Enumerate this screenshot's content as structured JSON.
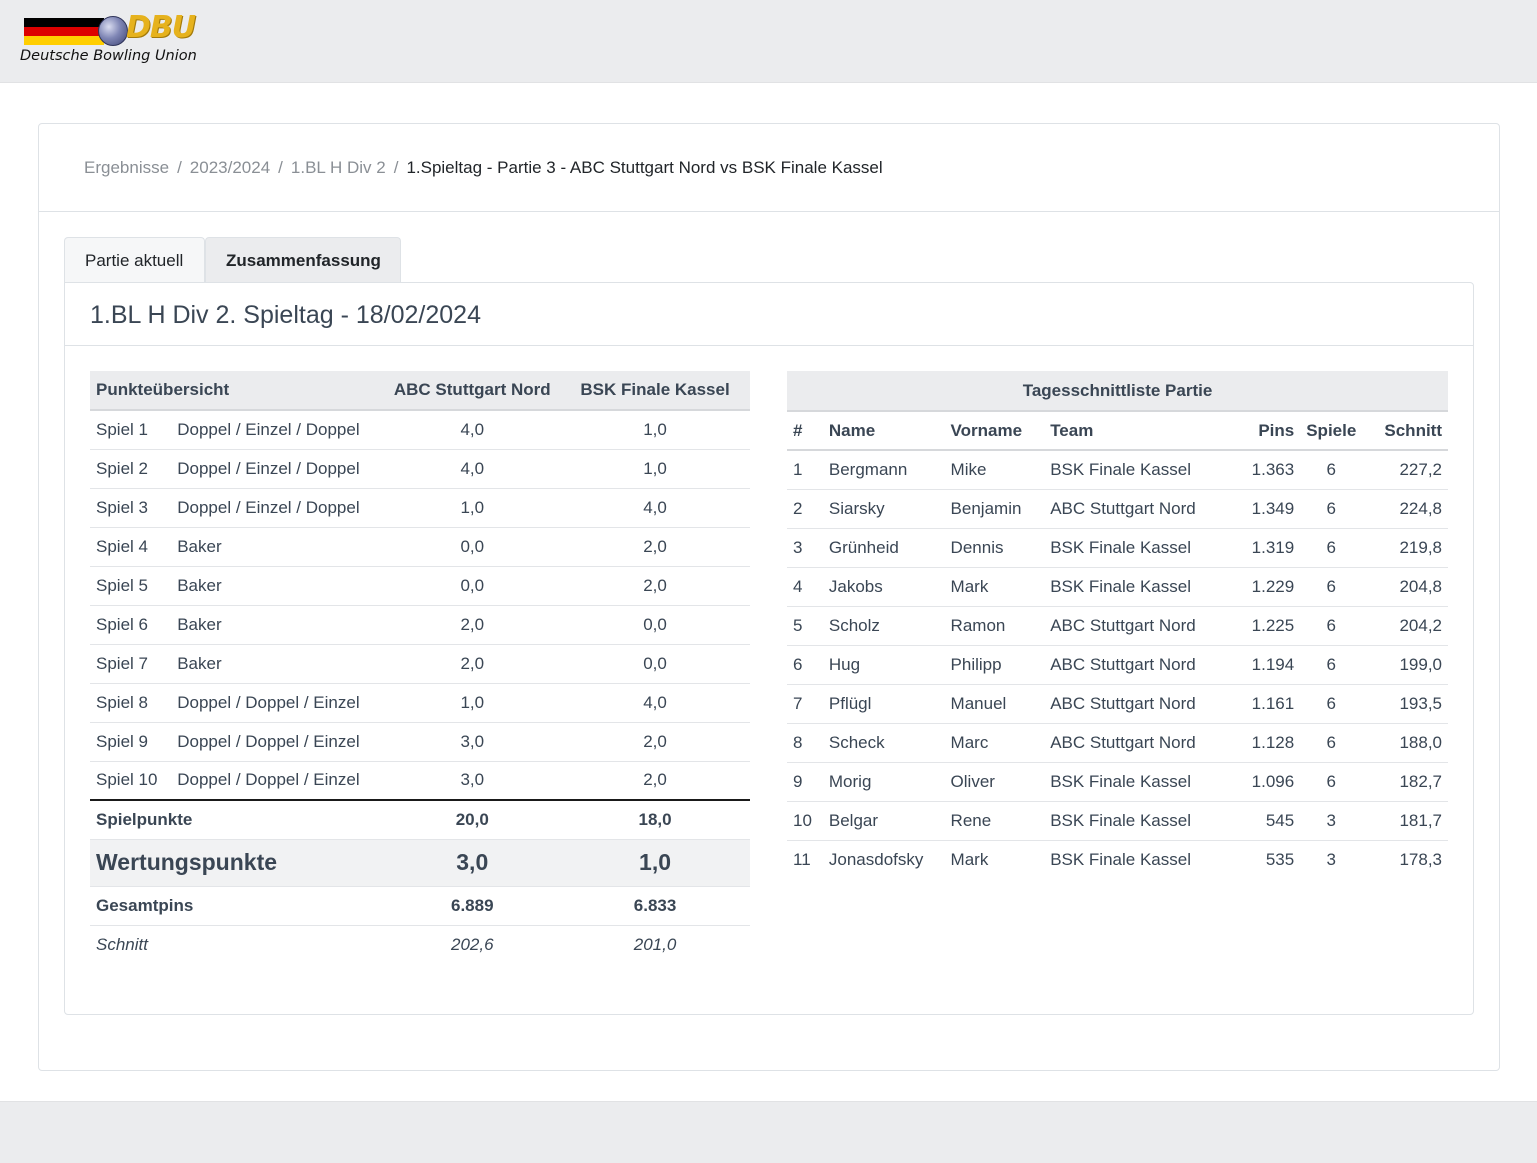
{
  "logo": {
    "brand": "DBU",
    "subtitle": "Deutsche Bowling Union",
    "flag_colors": [
      "#000000",
      "#dd0000",
      "#ffce00"
    ]
  },
  "breadcrumb": {
    "items": [
      "Ergebnisse",
      "2023/2024",
      "1.BL H Div 2"
    ],
    "separator": "/",
    "active": "1.Spieltag - Partie 3 - ABC Stuttgart Nord vs BSK Finale Kassel"
  },
  "tabs": [
    {
      "label": "Partie aktuell",
      "active": false
    },
    {
      "label": "Zusammenfassung",
      "active": true
    }
  ],
  "panel": {
    "title": "1.BL H Div 2. Spieltag - 18/02/2024"
  },
  "points_table": {
    "headers": [
      "Punkteübersicht",
      "ABC Stuttgart Nord",
      "BSK Finale Kassel"
    ],
    "rows": [
      {
        "game": "Spiel 1",
        "mode": "Doppel / Einzel / Doppel",
        "home": "4,0",
        "away": "1,0"
      },
      {
        "game": "Spiel 2",
        "mode": "Doppel / Einzel / Doppel",
        "home": "4,0",
        "away": "1,0"
      },
      {
        "game": "Spiel 3",
        "mode": "Doppel / Einzel / Doppel",
        "home": "1,0",
        "away": "4,0"
      },
      {
        "game": "Spiel 4",
        "mode": "Baker",
        "home": "0,0",
        "away": "2,0"
      },
      {
        "game": "Spiel 5",
        "mode": "Baker",
        "home": "0,0",
        "away": "2,0"
      },
      {
        "game": "Spiel 6",
        "mode": "Baker",
        "home": "2,0",
        "away": "0,0"
      },
      {
        "game": "Spiel 7",
        "mode": "Baker",
        "home": "2,0",
        "away": "0,0"
      },
      {
        "game": "Spiel 8",
        "mode": "Doppel / Doppel / Einzel",
        "home": "1,0",
        "away": "4,0"
      },
      {
        "game": "Spiel 9",
        "mode": "Doppel / Doppel / Einzel",
        "home": "3,0",
        "away": "2,0"
      },
      {
        "game": "Spiel 10",
        "mode": "Doppel / Doppel / Einzel",
        "home": "3,0",
        "away": "2,0"
      }
    ],
    "totals": {
      "spielpunkte": {
        "label": "Spielpunkte",
        "home": "20,0",
        "away": "18,0"
      },
      "wertungspunkte": {
        "label": "Wertungspunkte",
        "home": "3,0",
        "away": "1,0"
      },
      "gesamtpins": {
        "label": "Gesamtpins",
        "home": "6.889",
        "away": "6.833"
      },
      "schnitt": {
        "label": "Schnitt",
        "home": "202,6",
        "away": "201,0"
      }
    }
  },
  "ranking_table": {
    "caption": "Tagesschnittliste Partie",
    "headers": [
      "#",
      "Name",
      "Vorname",
      "Team",
      "Pins",
      "Spiele",
      "Schnitt"
    ],
    "rows": [
      {
        "rank": "1",
        "name": "Bergmann",
        "first": "Mike",
        "team": "BSK Finale Kassel",
        "pins": "1.363",
        "games": "6",
        "avg": "227,2"
      },
      {
        "rank": "2",
        "name": "Siarsky",
        "first": "Benjamin",
        "team": "ABC Stuttgart Nord",
        "pins": "1.349",
        "games": "6",
        "avg": "224,8"
      },
      {
        "rank": "3",
        "name": "Grünheid",
        "first": "Dennis",
        "team": "BSK Finale Kassel",
        "pins": "1.319",
        "games": "6",
        "avg": "219,8"
      },
      {
        "rank": "4",
        "name": "Jakobs",
        "first": "Mark",
        "team": "BSK Finale Kassel",
        "pins": "1.229",
        "games": "6",
        "avg": "204,8"
      },
      {
        "rank": "5",
        "name": "Scholz",
        "first": "Ramon",
        "team": "ABC Stuttgart Nord",
        "pins": "1.225",
        "games": "6",
        "avg": "204,2"
      },
      {
        "rank": "6",
        "name": "Hug",
        "first": "Philipp",
        "team": "ABC Stuttgart Nord",
        "pins": "1.194",
        "games": "6",
        "avg": "199,0"
      },
      {
        "rank": "7",
        "name": "Pflügl",
        "first": "Manuel",
        "team": "ABC Stuttgart Nord",
        "pins": "1.161",
        "games": "6",
        "avg": "193,5"
      },
      {
        "rank": "8",
        "name": "Scheck",
        "first": "Marc",
        "team": "ABC Stuttgart Nord",
        "pins": "1.128",
        "games": "6",
        "avg": "188,0"
      },
      {
        "rank": "9",
        "name": "Morig",
        "first": "Oliver",
        "team": "BSK Finale Kassel",
        "pins": "1.096",
        "games": "6",
        "avg": "182,7"
      },
      {
        "rank": "10",
        "name": "Belgar",
        "first": "Rene",
        "team": "BSK Finale Kassel",
        "pins": "545",
        "games": "3",
        "avg": "181,7"
      },
      {
        "rank": "11",
        "name": "Jonasdofsky",
        "first": "Mark",
        "team": "BSK Finale Kassel",
        "pins": "535",
        "games": "3",
        "avg": "178,3"
      }
    ]
  }
}
